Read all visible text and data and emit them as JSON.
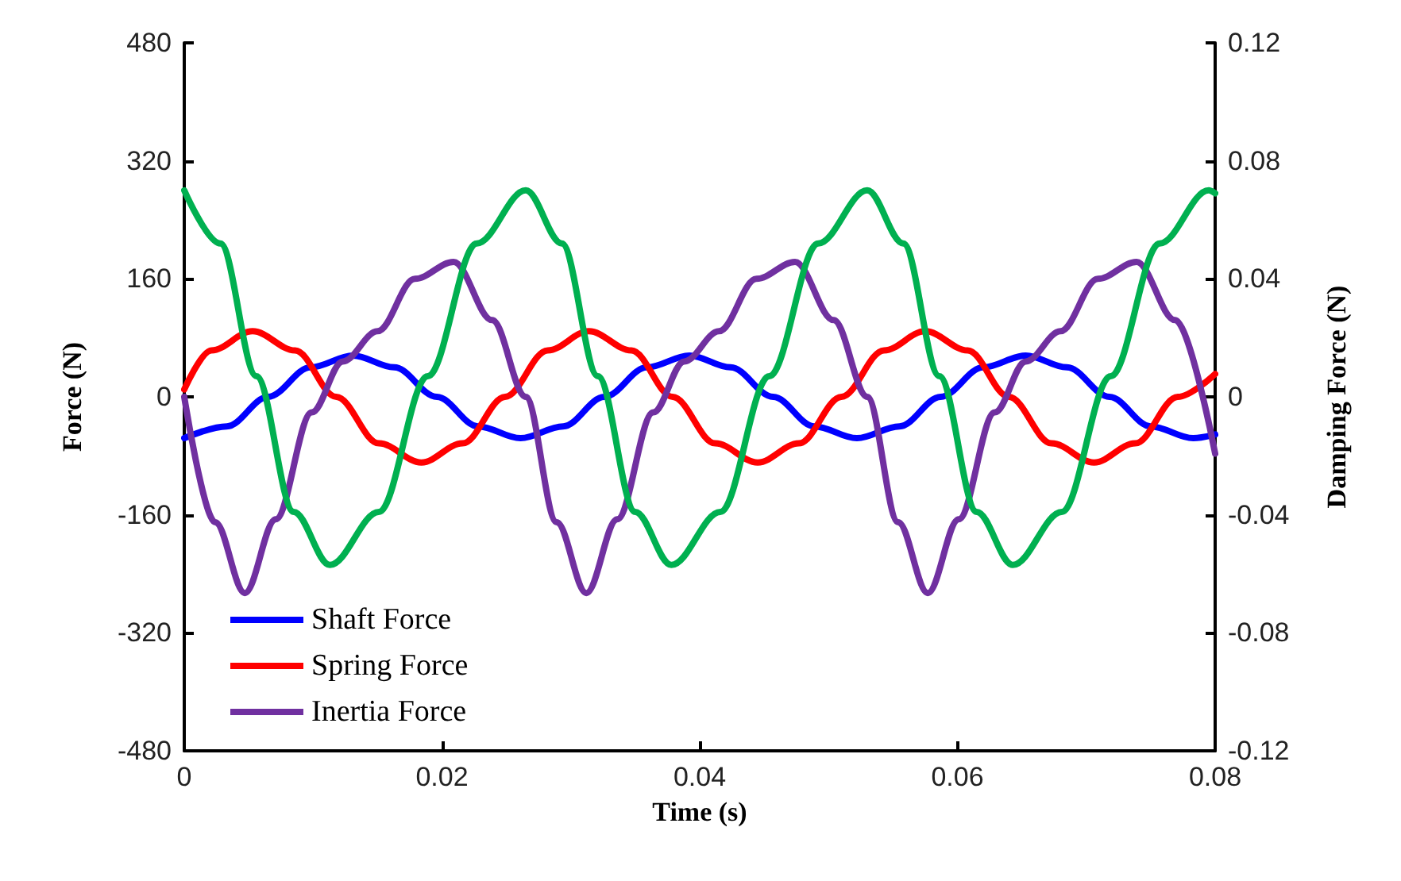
{
  "chart_data": {
    "type": "line",
    "xlabel": "Time (s)",
    "ylabel": "Force (N)",
    "y2label": "Damping Force (N)",
    "xlim": [
      0,
      0.08
    ],
    "xticks": [
      0,
      0.02,
      0.04,
      0.06,
      0.08
    ],
    "ylim": [
      -480,
      480
    ],
    "yticks": [
      -480,
      -320,
      -160,
      0,
      160,
      320,
      480
    ],
    "y2lim": [
      -0.12,
      0.12
    ],
    "y2ticks": [
      -0.12,
      -0.08,
      -0.04,
      0,
      0.04,
      0.08,
      0.12
    ],
    "grid": false,
    "legend": "bottom left",
    "marker": "none",
    "line_style": "solid",
    "series": [
      {
        "name": "Shaft Force",
        "color": "#0000ff",
        "x": [
          0,
          0.0033,
          0.0065,
          0.0098,
          0.0131,
          0.0163,
          0.0196,
          0.0228,
          0.0261,
          0.0294,
          0.0326,
          0.0359,
          0.0392,
          0.0424,
          0.0457,
          0.0489,
          0.0522,
          0.0555,
          0.0587,
          0.062,
          0.0653,
          0.0685,
          0.0718,
          0.075,
          0.0783,
          0.08
        ],
        "values": [
          -56,
          -40,
          0,
          40,
          56,
          40,
          0,
          -40,
          -56,
          -40,
          0,
          40,
          56,
          40,
          0,
          -40,
          -56,
          -40,
          0,
          40,
          56,
          40,
          0,
          -40,
          -56,
          -51
        ]
      },
      {
        "name": "Spring Force",
        "color": "#ff0000",
        "x": [
          0,
          0.0021,
          0.0053,
          0.0086,
          0.0118,
          0.0151,
          0.0184,
          0.0216,
          0.0249,
          0.0282,
          0.0314,
          0.0347,
          0.0379,
          0.0412,
          0.0445,
          0.0477,
          0.051,
          0.0543,
          0.0575,
          0.0608,
          0.064,
          0.0673,
          0.0706,
          0.0738,
          0.0771,
          0.08
        ],
        "values": [
          10,
          63,
          89,
          63,
          0,
          -63,
          -89,
          -63,
          0,
          63,
          89,
          63,
          0,
          -63,
          -89,
          -63,
          0,
          63,
          89,
          63,
          0,
          -63,
          -89,
          -63,
          0,
          31
        ]
      },
      {
        "name": "Inertia Force",
        "color": "#7030a0",
        "x": [
          0,
          0.0024,
          0.0047,
          0.0071,
          0.0099,
          0.0123,
          0.015,
          0.0179,
          0.0209,
          0.0239,
          0.0265,
          0.0289,
          0.0312,
          0.0336,
          0.0364,
          0.0388,
          0.0415,
          0.0444,
          0.0474,
          0.0504,
          0.053,
          0.0554,
          0.0577,
          0.0601,
          0.0629,
          0.0653,
          0.068,
          0.0709,
          0.0739,
          0.0769,
          0.08
        ],
        "values": [
          0,
          -170,
          -266,
          -166,
          -21,
          48,
          89,
          160,
          183,
          104,
          0,
          -170,
          -266,
          -166,
          -21,
          48,
          89,
          160,
          183,
          104,
          0,
          -170,
          -266,
          -166,
          -21,
          48,
          89,
          160,
          183,
          104,
          -77
        ]
      },
      {
        "color": "#00b050",
        "axis": "y2",
        "x": [
          0,
          0.0028,
          0.0056,
          0.0085,
          0.0113,
          0.0151,
          0.0189,
          0.0227,
          0.0265,
          0.0293,
          0.0321,
          0.035,
          0.0378,
          0.0416,
          0.0454,
          0.0492,
          0.053,
          0.0558,
          0.0586,
          0.0615,
          0.0643,
          0.0681,
          0.0719,
          0.0757,
          0.0795,
          0.08
        ],
        "values": [
          0.07,
          0.052,
          0.007,
          -0.039,
          -0.057,
          -0.039,
          0.007,
          0.052,
          0.07,
          0.052,
          0.007,
          -0.039,
          -0.057,
          -0.039,
          0.007,
          0.052,
          0.07,
          0.052,
          0.007,
          -0.039,
          -0.057,
          -0.039,
          0.007,
          0.052,
          0.07,
          0.069
        ]
      }
    ]
  }
}
